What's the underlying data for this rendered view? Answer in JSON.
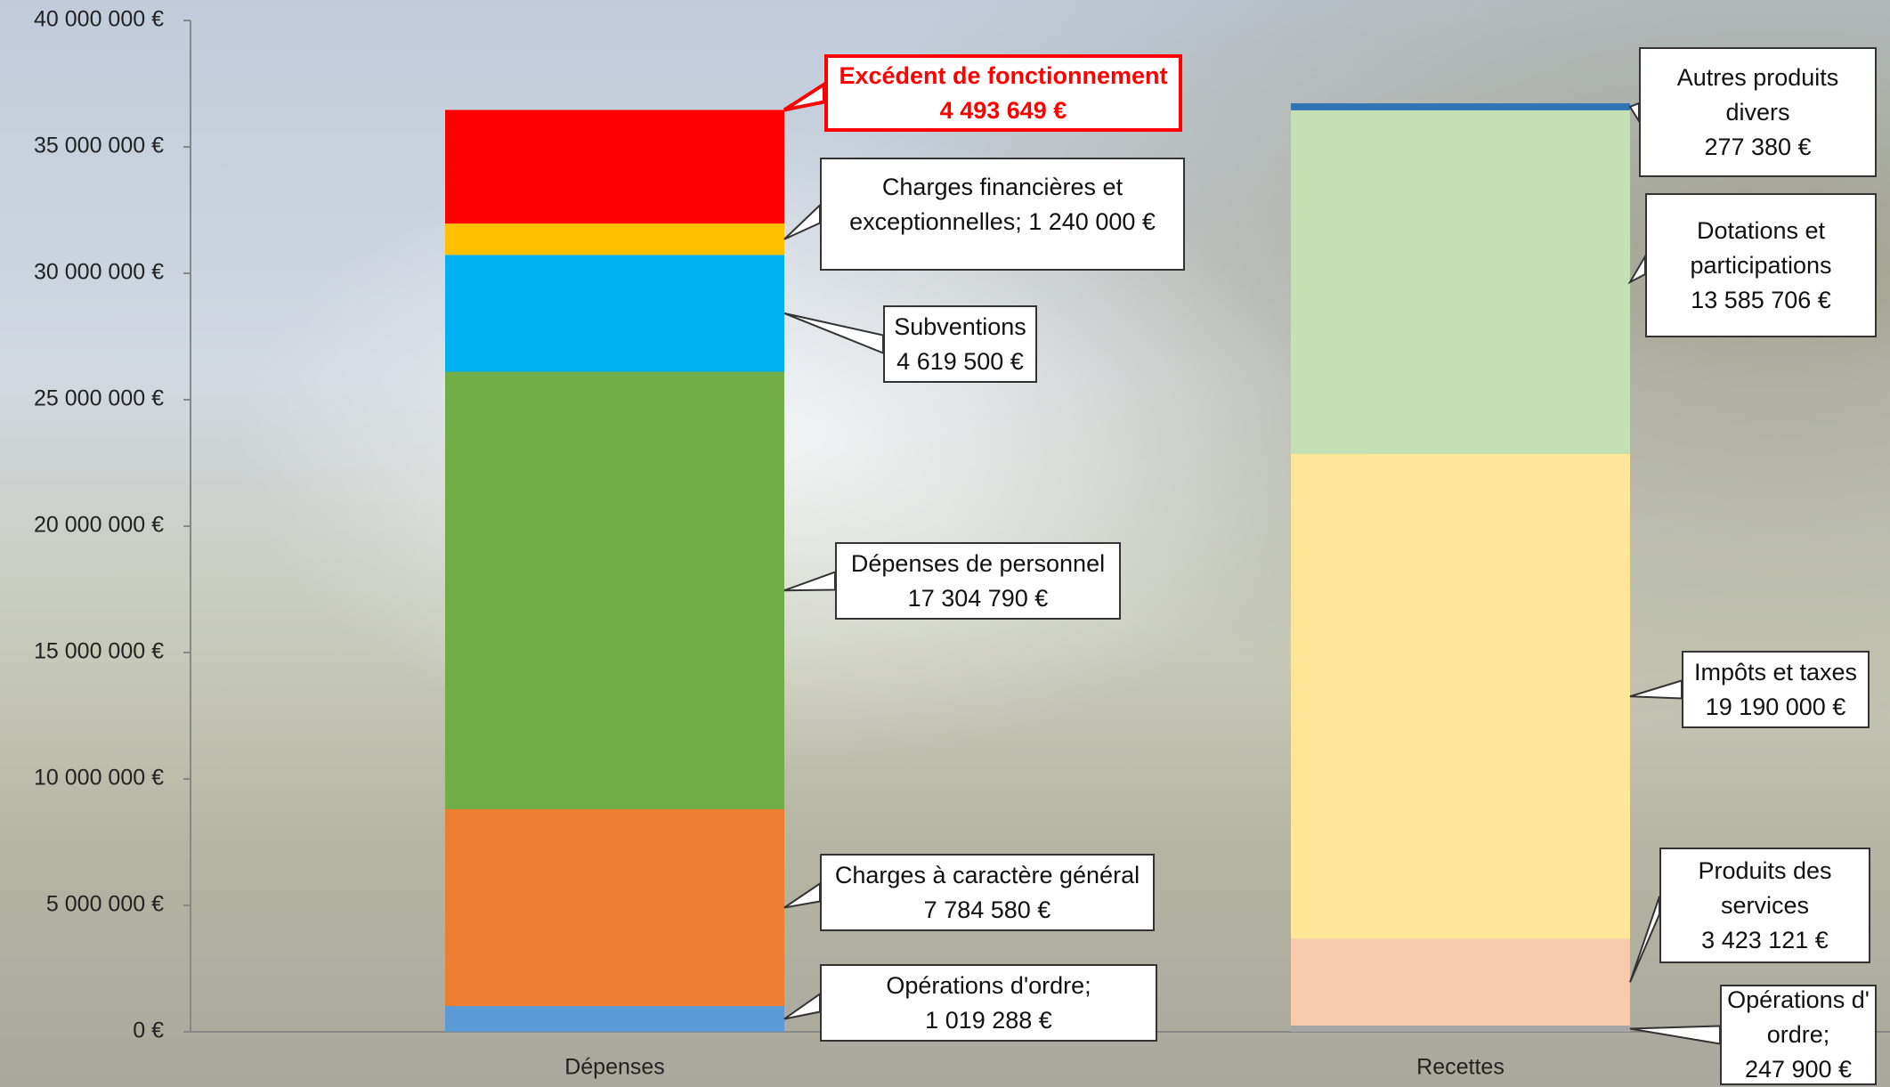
{
  "chart_data": {
    "type": "stacked-bar",
    "categories": [
      "Dépenses",
      "Recettes"
    ],
    "ylim": [
      0,
      40000000
    ],
    "yticks": [
      {
        "value": 0,
        "label": "0 €"
      },
      {
        "value": 5000000,
        "label": "5 000 000 €"
      },
      {
        "value": 10000000,
        "label": "10 000 000 €"
      },
      {
        "value": 15000000,
        "label": "15 000 000 €"
      },
      {
        "value": 20000000,
        "label": "20 000 000 €"
      },
      {
        "value": 25000000,
        "label": "25 000 000 €"
      },
      {
        "value": 30000000,
        "label": "30 000 000 €"
      },
      {
        "value": 35000000,
        "label": "35 000 000 €"
      },
      {
        "value": 40000000,
        "label": "40 000 000 €"
      }
    ],
    "series": [
      {
        "name": "Opérations d'ordre;",
        "color": "#5b9bd5",
        "values": [
          1019288,
          null
        ],
        "value_labels": [
          "1 019 288 €",
          null
        ]
      },
      {
        "name": "Charges à caractère général",
        "color": "#ed7d31",
        "values": [
          7784580,
          null
        ],
        "value_labels": [
          "7 784 580 €",
          null
        ]
      },
      {
        "name": "Dépenses de personnel",
        "color": "#70ad47",
        "values": [
          17304790,
          null
        ],
        "value_labels": [
          "17 304 790 €",
          null
        ]
      },
      {
        "name": "Subventions",
        "color": "#00b0f0",
        "values": [
          4619500,
          null
        ],
        "value_labels": [
          "4 619 500 €",
          null
        ]
      },
      {
        "name": "Charges financières et exceptionnelles;",
        "color": "#ffc000",
        "values": [
          1240000,
          null
        ],
        "value_labels": [
          "1 240 000 €",
          null
        ]
      },
      {
        "name": "Excédent de fonctionnement",
        "color": "#ff0000",
        "values": [
          4493649,
          null
        ],
        "value_labels": [
          "4 493 649 €",
          null
        ]
      },
      {
        "name": "Opérations d' ordre;",
        "color": "#a5a5a5",
        "values": [
          null,
          247900
        ],
        "value_labels": [
          null,
          "247 900 €"
        ]
      },
      {
        "name": "Produits des services",
        "color": "#f8cbad",
        "values": [
          null,
          3423121
        ],
        "value_labels": [
          null,
          "3 423 121 €"
        ]
      },
      {
        "name": "Impôts et taxes",
        "color": "#ffe699",
        "values": [
          null,
          19190000
        ],
        "value_labels": [
          null,
          "19 190 000 €"
        ]
      },
      {
        "name": "Dotations et participations",
        "color": "#c5e0b4",
        "values": [
          null,
          13585706
        ],
        "value_labels": [
          null,
          "13 585 706 €"
        ]
      },
      {
        "name": "Autres produits divers",
        "color": "#2e75b6",
        "values": [
          null,
          277380
        ],
        "value_labels": [
          null,
          "277 380 €"
        ]
      }
    ]
  }
}
